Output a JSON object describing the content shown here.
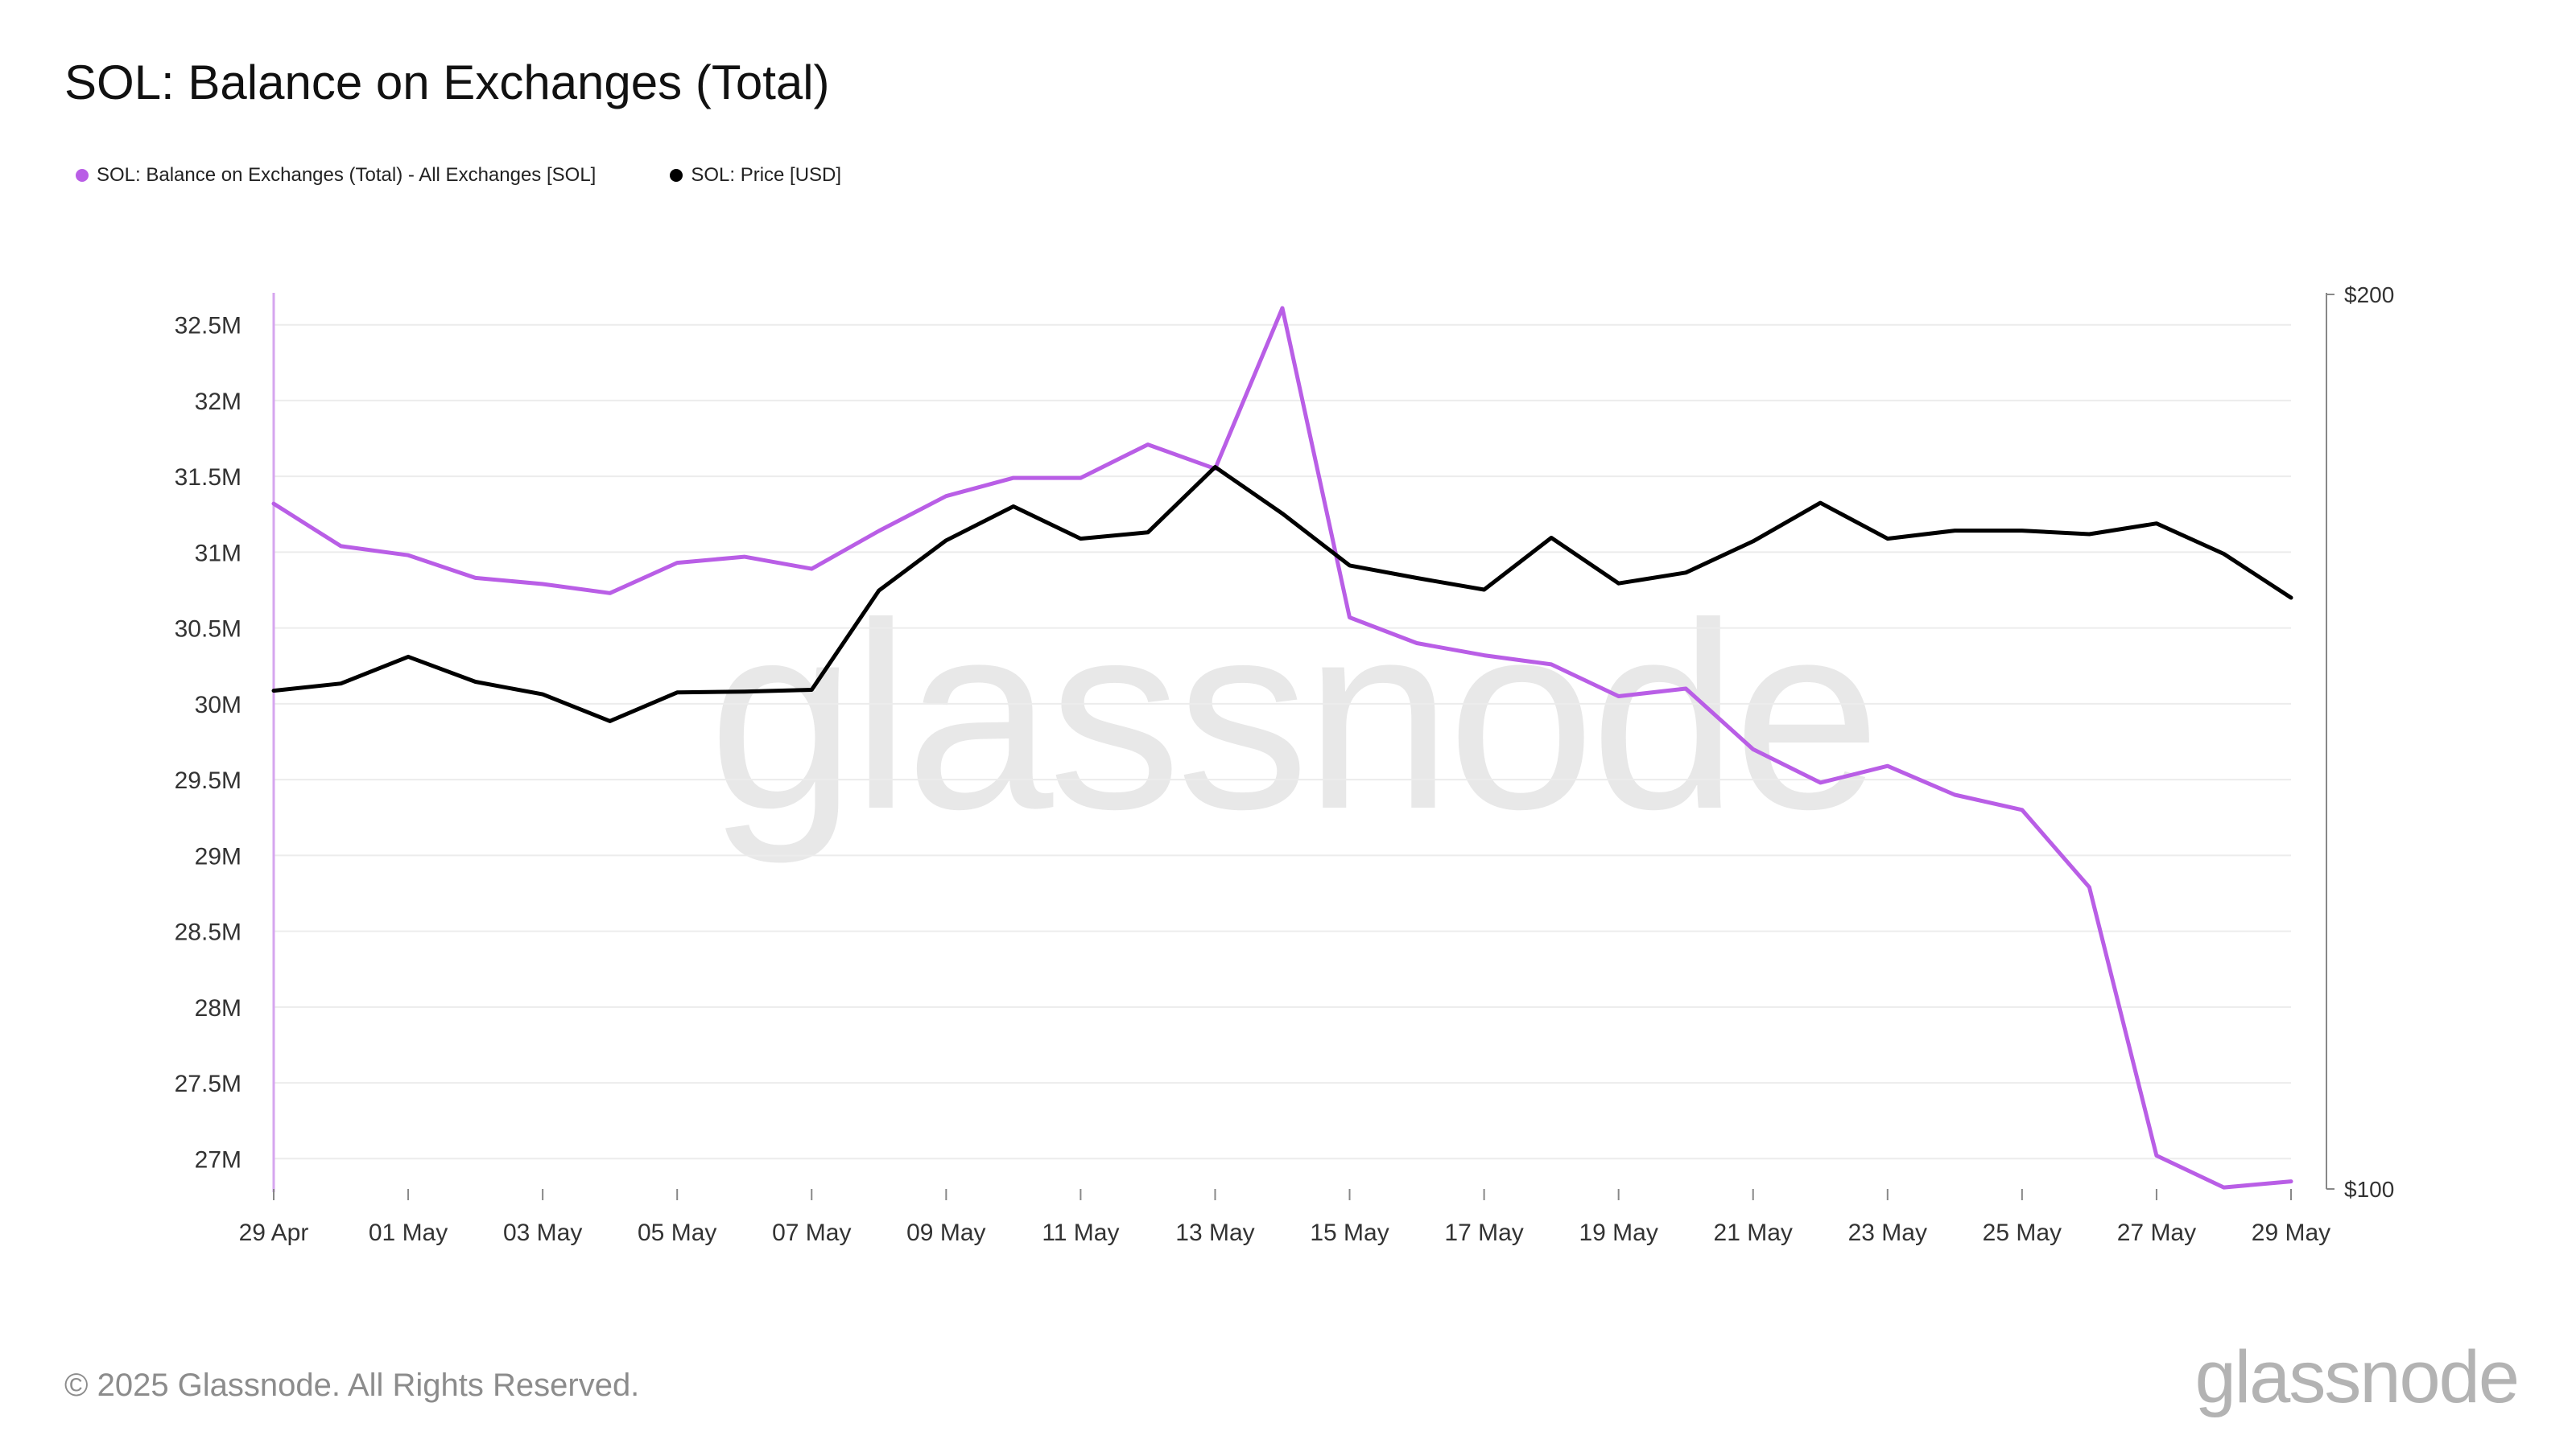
{
  "title": "SOL: Balance on Exchanges (Total)",
  "legend": [
    {
      "label": "SOL: Balance on Exchanges (Total) - All Exchanges [SOL]",
      "color": "#b95ee6"
    },
    {
      "label": "SOL: Price [USD]",
      "color": "#000000"
    }
  ],
  "footer": "© 2025 Glassnode. All Rights Reserved.",
  "watermark": "glassnode",
  "chart_data": {
    "type": "line",
    "x": [
      "29 Apr",
      "30 Apr",
      "01 May",
      "02 May",
      "03 May",
      "04 May",
      "05 May",
      "06 May",
      "07 May",
      "08 May",
      "09 May",
      "10 May",
      "11 May",
      "12 May",
      "13 May",
      "14 May",
      "15 May",
      "16 May",
      "17 May",
      "18 May",
      "19 May",
      "20 May",
      "21 May",
      "22 May",
      "23 May",
      "24 May",
      "25 May",
      "26 May",
      "27 May",
      "28 May",
      "29 May"
    ],
    "x_tick_labels": [
      "29 Apr",
      "01 May",
      "03 May",
      "05 May",
      "07 May",
      "09 May",
      "11 May",
      "13 May",
      "15 May",
      "17 May",
      "19 May",
      "21 May",
      "23 May",
      "25 May",
      "27 May",
      "29 May"
    ],
    "series": [
      {
        "name": "SOL: Balance on Exchanges (Total) - All Exchanges [SOL]",
        "axis": "left",
        "color": "#b95ee6",
        "values": [
          31320000,
          31040000,
          30980000,
          30830000,
          30790000,
          30730000,
          30930000,
          30970000,
          30890000,
          31140000,
          31370000,
          31490000,
          31490000,
          31710000,
          31550000,
          32610000,
          30570000,
          30400000,
          30320000,
          30260000,
          30050000,
          30100000,
          29700000,
          29480000,
          29590000,
          29400000,
          29300000,
          28790000,
          27020000,
          26810000,
          26850000
        ]
      },
      {
        "name": "SOL: Price [USD]",
        "axis": "right",
        "color": "#000000",
        "values": [
          155.7,
          156.5,
          159.5,
          156.7,
          155.3,
          152.3,
          155.5,
          155.6,
          155.8,
          166.9,
          172.5,
          176.3,
          172.7,
          173.4,
          180.7,
          175.5,
          169.7,
          168.3,
          167.0,
          172.8,
          167.7,
          168.9,
          172.4,
          176.7,
          172.7,
          173.6,
          173.6,
          173.2,
          174.4,
          171.0,
          166.1
        ]
      }
    ],
    "y_left": {
      "ticks": [
        "27M",
        "27.5M",
        "28M",
        "28.5M",
        "29M",
        "29.5M",
        "30M",
        "30.5M",
        "31M",
        "31.5M",
        "32M",
        "32.5M"
      ],
      "range": [
        26800000,
        32700000
      ]
    },
    "y_right": {
      "ticks": [
        "$100",
        "$200"
      ],
      "range": [
        100,
        200
      ]
    },
    "grid": true,
    "legend_position": "top-left"
  }
}
